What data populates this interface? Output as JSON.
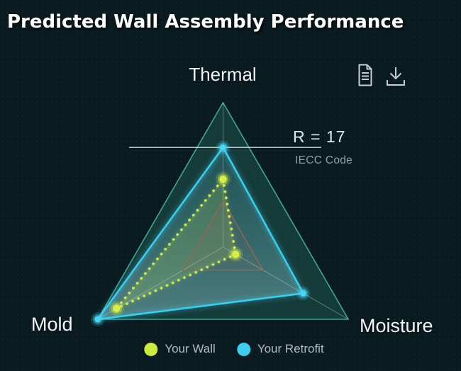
{
  "header": {
    "title": "Predicted Wall Assembly Performance"
  },
  "toolbar": {
    "icons": [
      {
        "name": "report-document-icon"
      },
      {
        "name": "download-icon"
      }
    ]
  },
  "annotation": {
    "value": "R = 17",
    "caption": "IECC Code"
  },
  "legend": {
    "position": "bottom",
    "items": [
      {
        "label": "Your Wall",
        "color": "#cdea3e"
      },
      {
        "label": "Your Retrofit",
        "color": "#3ecdee"
      }
    ]
  },
  "colors": {
    "background": "#0a1b20",
    "grid_fill": "rgba(45,125,108,0.33)",
    "grid_stroke": "rgba(72,196,178,0.8)",
    "axis_line": "rgba(200,222,226,0.42)",
    "wall_series": "#c8e94f",
    "retrofit_series": "#36cff1",
    "reference_stroke": "#a5634a",
    "threshold_line": "#c6d2d6"
  },
  "chart_data": {
    "type": "radar",
    "title": "Predicted Wall Assembly Performance",
    "axes": [
      "Thermal",
      "Moisture",
      "Mold"
    ],
    "axis_angles_deg": [
      -90,
      30,
      150
    ],
    "scale_max": 1.0,
    "grid": "single-outer-triangle",
    "legend_position": "bottom",
    "series": [
      {
        "name": "Your Wall",
        "style": "dotted",
        "color": "#c8e94f",
        "dot_color": "#d8f043",
        "fill": "rgba(186,220,96,0.20)",
        "values": [
          0.47,
          0.1,
          0.85
        ]
      },
      {
        "name": "Your Retrofit",
        "style": "solid",
        "color": "#36cff1",
        "dot_color": "#49d6f4",
        "fill": "gradient-blue",
        "values": [
          0.69,
          0.64,
          1.0
        ]
      }
    ],
    "reference_triangle": {
      "name": "reference",
      "color": "#a5634a",
      "values": [
        0.32,
        0.32,
        0.32
      ]
    },
    "threshold": {
      "axis": "Thermal",
      "value": 0.69,
      "label": "R = 17",
      "sublabel": "IECC Code"
    }
  }
}
